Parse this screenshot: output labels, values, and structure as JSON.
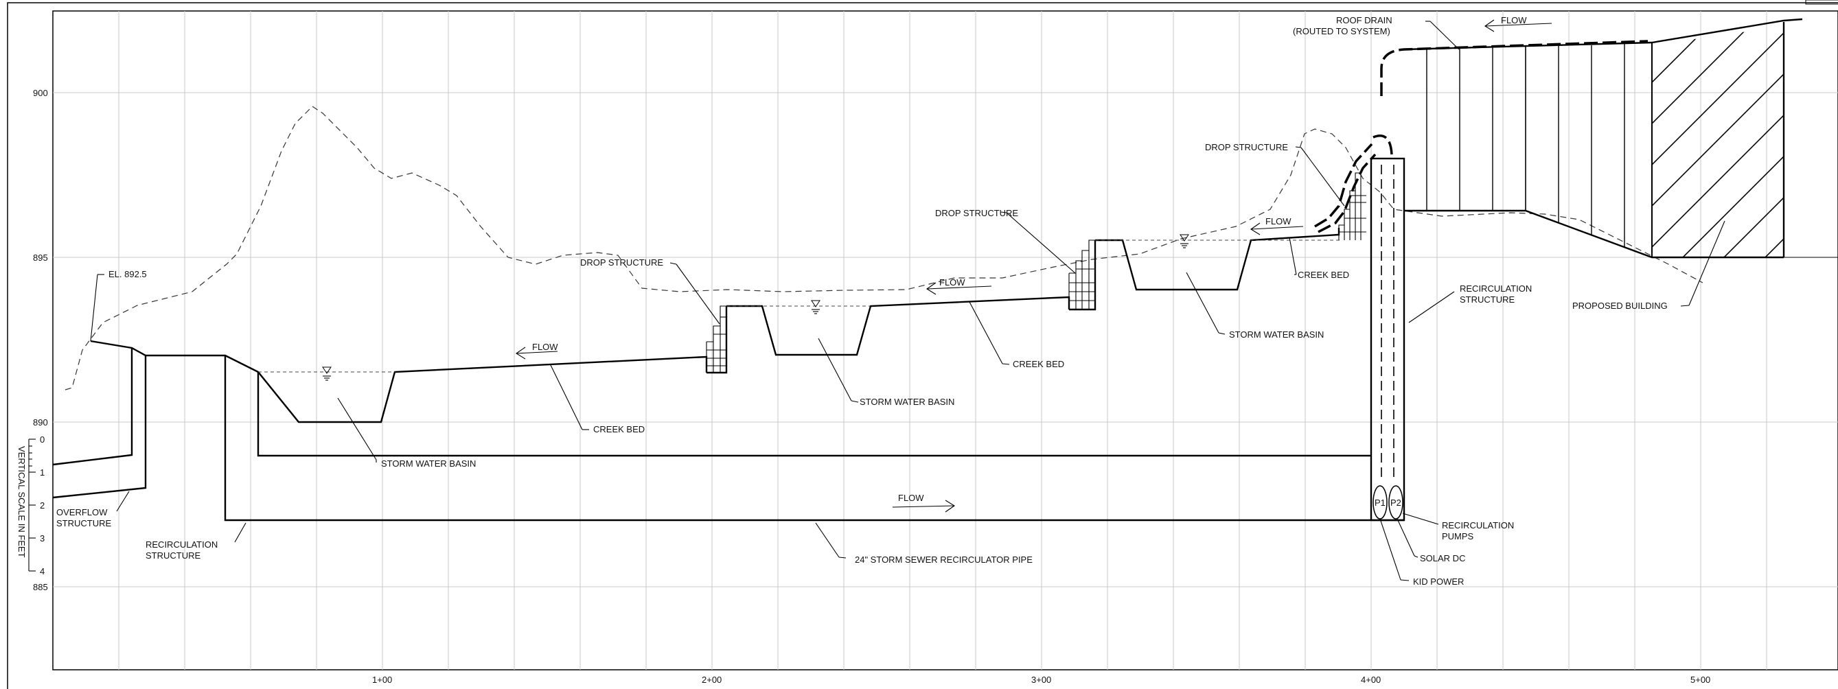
{
  "elevations": [
    "900",
    "895",
    "890",
    "885"
  ],
  "stations": [
    "1+00",
    "2+00",
    "3+00",
    "4+00",
    "5+00"
  ],
  "vertical_scale": {
    "label": "VERTICAL SCALE IN FEET",
    "ticks": [
      "0",
      "1",
      "2",
      "3",
      "4"
    ]
  },
  "labels": {
    "el": "EL. 892.5",
    "overflow1": "OVERFLOW",
    "overflow2": "STRUCTURE",
    "recirc_left1": "RECIRCULATION",
    "recirc_left2": "STRUCTURE",
    "basin1": "STORM WATER BASIN",
    "creek1": "CREEK BED",
    "drop1": "DROP STRUCTURE",
    "basin2": "STORM WATER BASIN",
    "creek2": "CREEK BED",
    "drop2": "DROP STRUCTURE",
    "basin3": "STORM WATER BASIN",
    "creek3": "CREEK BED",
    "drop3": "DROP STRUCTURE",
    "roof1": "ROOF DRAIN",
    "roof2": "(ROUTED TO SYSTEM)",
    "recirc_right1": "RECIRCULATION",
    "recirc_right2": "STRUCTURE",
    "building": "PROPOSED BUILDING",
    "pumps1": "RECIRCULATION",
    "pumps2": "PUMPS",
    "solar": "SOLAR DC",
    "kid": "KID POWER",
    "pipe": "24\" STORM SEWER RECIRCULATOR PIPE",
    "p1": "P1",
    "p2": "P2"
  },
  "flow_labels": [
    "FLOW",
    "FLOW",
    "FLOW",
    "FLOW",
    "FLOW"
  ]
}
